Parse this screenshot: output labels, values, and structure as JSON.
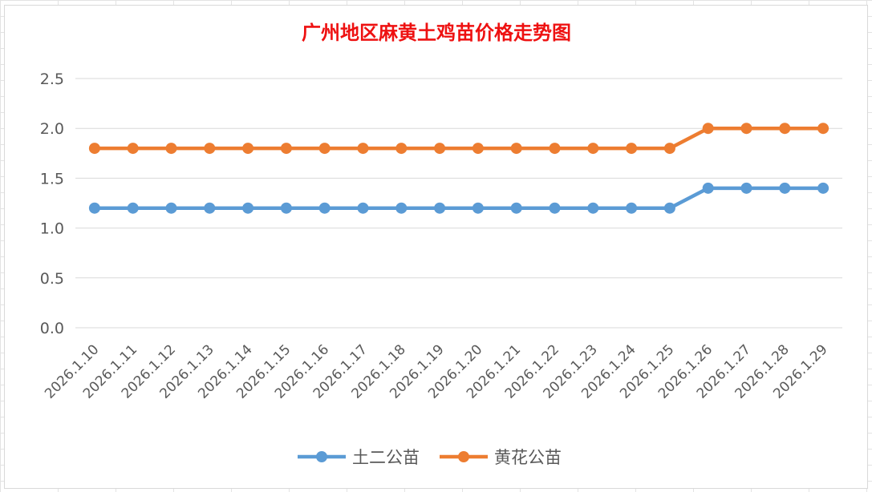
{
  "chart_data": {
    "type": "line",
    "title": "广州地区麻黄土鸡苗价格走势图",
    "xlabel": "",
    "ylabel": "",
    "categories": [
      "2026.1.10",
      "2026.1.11",
      "2026.1.12",
      "2026.1.13",
      "2026.1.14",
      "2026.1.15",
      "2026.1.16",
      "2026.1.17",
      "2026.1.18",
      "2026.1.19",
      "2026.1.20",
      "2026.1.21",
      "2026.1.22",
      "2026.1.23",
      "2026.1.24",
      "2026.1.25",
      "2026.1.26",
      "2026.1.27",
      "2026.1.28",
      "2026.1.29"
    ],
    "yticks": [
      "0.0",
      "0.5",
      "1.0",
      "1.5",
      "2.0",
      "2.5"
    ],
    "ylim": [
      0,
      2.5
    ],
    "grid": true,
    "legend_position": "bottom",
    "series": [
      {
        "name": "土二公苗",
        "color": "#5b9bd5",
        "values": [
          1.2,
          1.2,
          1.2,
          1.2,
          1.2,
          1.2,
          1.2,
          1.2,
          1.2,
          1.2,
          1.2,
          1.2,
          1.2,
          1.2,
          1.2,
          1.2,
          1.4,
          1.4,
          1.4,
          1.4
        ]
      },
      {
        "name": "黄花公苗",
        "color": "#ed7d31",
        "values": [
          1.8,
          1.8,
          1.8,
          1.8,
          1.8,
          1.8,
          1.8,
          1.8,
          1.8,
          1.8,
          1.8,
          1.8,
          1.8,
          1.8,
          1.8,
          1.8,
          2.0,
          2.0,
          2.0,
          2.0
        ]
      }
    ]
  }
}
